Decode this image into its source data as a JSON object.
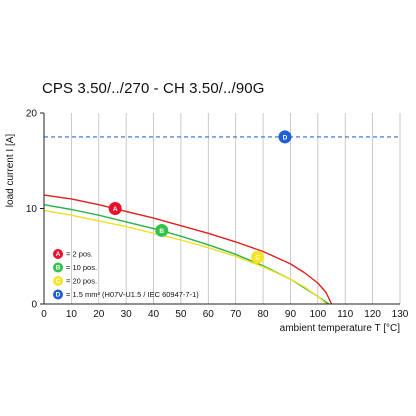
{
  "chart_data": {
    "type": "line",
    "title": "CPS 3.50/../270 - CH 3.50/../90G",
    "xlabel": "ambient temperature T [°C]",
    "ylabel": "load current I [A]",
    "xlim": [
      0,
      130
    ],
    "ylim": [
      0,
      20
    ],
    "x_ticks": [
      0,
      10,
      20,
      30,
      40,
      50,
      60,
      70,
      80,
      90,
      100,
      110,
      120,
      130
    ],
    "y_ticks": [
      0,
      10,
      20
    ],
    "grid": "vertical",
    "series": [
      {
        "name": "= 2 pos.",
        "marker": "A",
        "color": "#e02020",
        "marker_color": "#e8102a",
        "marker_at": [
          26,
          10
        ],
        "x": [
          0,
          10,
          20,
          30,
          40,
          50,
          60,
          70,
          80,
          90,
          95,
          100,
          103,
          105
        ],
        "y": [
          11.4,
          11.0,
          10.4,
          9.7,
          9.0,
          8.2,
          7.4,
          6.5,
          5.5,
          4.2,
          3.3,
          2.2,
          1.2,
          0
        ]
      },
      {
        "name": "= 10 pos.",
        "marker": "B",
        "color": "#2bb24c",
        "marker_color": "#34c34a",
        "marker_at": [
          43,
          7.7
        ],
        "x": [
          0,
          10,
          20,
          30,
          40,
          50,
          60,
          70,
          80,
          90,
          95,
          100,
          103,
          104
        ],
        "y": [
          10.4,
          9.9,
          9.3,
          8.6,
          7.9,
          7.1,
          6.2,
          5.2,
          4.0,
          2.6,
          1.7,
          0.8,
          0.2,
          0
        ]
      },
      {
        "name": "= 20 pos.",
        "marker": "C",
        "color": "#f0e020",
        "marker_color": "#f7e427",
        "marker_at": [
          78,
          4.9
        ],
        "x": [
          0,
          10,
          20,
          30,
          40,
          50,
          60,
          70,
          80,
          90,
          95,
          100,
          102,
          103
        ],
        "y": [
          9.8,
          9.3,
          8.7,
          8.1,
          7.4,
          6.7,
          5.9,
          5.0,
          3.9,
          2.6,
          1.8,
          0.8,
          0.3,
          0
        ]
      },
      {
        "name": "= 1.5 mm² (H07V-U1.5 / IEC 60947-7-1)",
        "marker": "D",
        "color": "#2a6ecc",
        "marker_color": "#1f5fd6",
        "marker_at": [
          88,
          17.5
        ],
        "dashed": true,
        "x": [
          0,
          130
        ],
        "y": [
          17.5,
          17.5
        ]
      }
    ],
    "legend": "bottom-left"
  }
}
